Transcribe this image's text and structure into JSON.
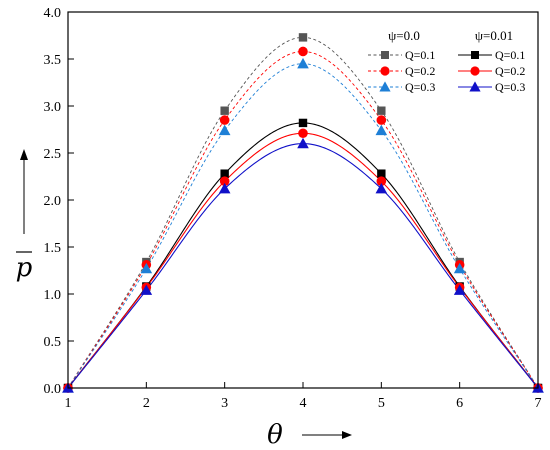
{
  "chart_data": {
    "type": "line",
    "xlabel": "θ",
    "ylabel": "p",
    "xlim": [
      1,
      7
    ],
    "ylim": [
      0,
      4
    ],
    "x_ticks": [
      "1",
      "2",
      "3",
      "4",
      "5",
      "6",
      "7"
    ],
    "y_ticks": [
      "0.0",
      "0.5",
      "1.0",
      "1.5",
      "2.0",
      "2.5",
      "3.0",
      "3.5",
      "4.0"
    ],
    "grid": false,
    "legend_position": "top-right",
    "legend_groups": [
      "ψ=0.0",
      "ψ=0.01"
    ],
    "x": [
      1,
      2,
      3,
      4,
      5,
      6,
      7
    ],
    "series": [
      {
        "group": 0,
        "name": "Q=0.1",
        "values": [
          0,
          1.34,
          2.95,
          3.73,
          2.95,
          1.34,
          0
        ],
        "color": "#555555",
        "marker": "square",
        "dashed": true
      },
      {
        "group": 0,
        "name": "Q=0.2",
        "values": [
          0,
          1.31,
          2.85,
          3.58,
          2.85,
          1.31,
          0
        ],
        "color": "#ff0000",
        "marker": "circle",
        "dashed": true
      },
      {
        "group": 0,
        "name": "Q=0.3",
        "values": [
          0,
          1.27,
          2.74,
          3.45,
          2.74,
          1.27,
          0
        ],
        "color": "#1e7fd6",
        "marker": "triangle",
        "dashed": true
      },
      {
        "group": 1,
        "name": "Q=0.1",
        "values": [
          0,
          1.08,
          2.28,
          2.82,
          2.28,
          1.08,
          0
        ],
        "color": "#000000",
        "marker": "square",
        "dashed": false
      },
      {
        "group": 1,
        "name": "Q=0.2",
        "values": [
          0,
          1.07,
          2.2,
          2.71,
          2.2,
          1.07,
          0
        ],
        "color": "#ff0000",
        "marker": "circle",
        "dashed": false
      },
      {
        "group": 1,
        "name": "Q=0.3",
        "values": [
          0,
          1.04,
          2.12,
          2.6,
          2.12,
          1.04,
          0
        ],
        "color": "#1010c8",
        "marker": "triangle",
        "dashed": false
      }
    ]
  }
}
